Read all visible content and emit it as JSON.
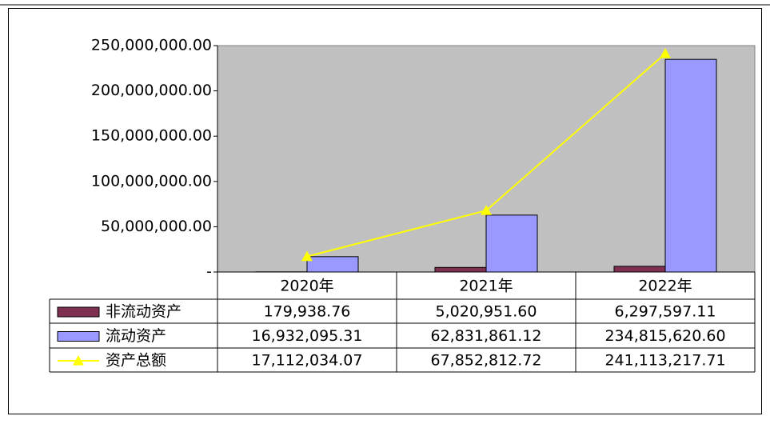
{
  "chart_data": {
    "type": "bar_line_table",
    "categories": [
      "2020年",
      "2021年",
      "2022年"
    ],
    "series": [
      {
        "name": "非流动资产",
        "type": "bar",
        "color": "#7f3050",
        "values": [
          179938.76,
          5020951.6,
          6297597.11
        ],
        "value_labels": [
          "179,938.76",
          "5,020,951.60",
          "6,297,597.11"
        ]
      },
      {
        "name": "流动资产",
        "type": "bar",
        "color": "#9999ff",
        "values": [
          16932095.31,
          62831861.12,
          234815620.6
        ],
        "value_labels": [
          "16,932,095.31",
          "62,831,861.12",
          "234,815,620.60"
        ]
      },
      {
        "name": "资产总额",
        "type": "line",
        "color": "#ffff00",
        "values": [
          17112034.07,
          67852812.72,
          241113217.71
        ],
        "value_labels": [
          "17,112,034.07",
          "67,852,812.72",
          "241,113,217.71"
        ]
      }
    ],
    "ylim": [
      0,
      250000000
    ],
    "yticks": [
      {
        "value": 0,
        "label": "-"
      },
      {
        "value": 50000000,
        "label": "50,000,000.00"
      },
      {
        "value": 100000000,
        "label": "100,000,000.00"
      },
      {
        "value": 150000000,
        "label": "150,000,000.00"
      },
      {
        "value": 200000000,
        "label": "200,000,000.00"
      },
      {
        "value": 250000000,
        "label": "250,000,000.00"
      }
    ],
    "plot_background": "#c0c0c0"
  }
}
